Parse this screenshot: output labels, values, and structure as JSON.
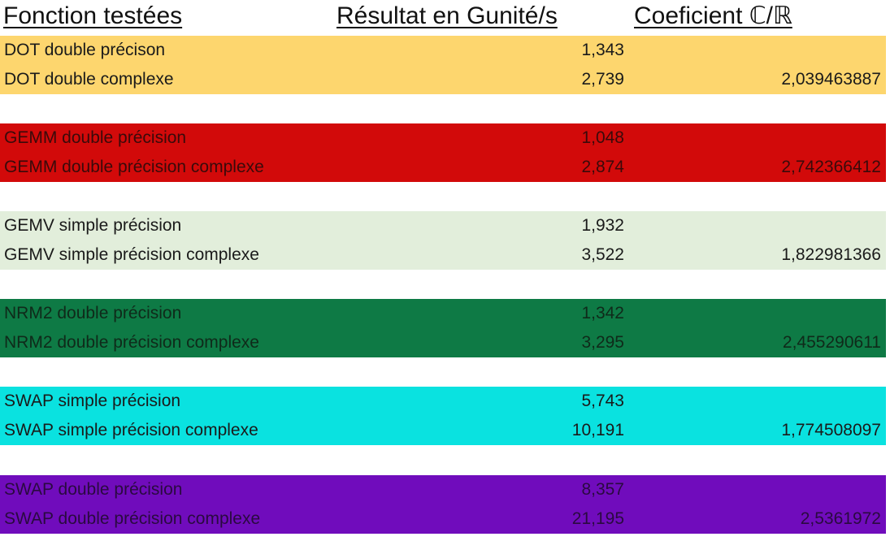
{
  "headers": {
    "function": "Fonction testées",
    "result": "Résultat en Gunité/s",
    "coefficient": "Coeficient  ℂ/ℝ"
  },
  "groups": [
    {
      "color": "#fdd66e",
      "text_color": "#1a1a1a",
      "rows": [
        {
          "name": "DOT double précison",
          "result": "1,343",
          "coef": ""
        },
        {
          "name": "DOT double complexe",
          "result": "2,739",
          "coef": "2,039463887"
        }
      ]
    },
    {
      "color": "#d20a0a",
      "text_color": "#3a0a0a",
      "rows": [
        {
          "name": "GEMM double précision",
          "result": "1,048",
          "coef": ""
        },
        {
          "name": "GEMM double précision complexe",
          "result": "2,874",
          "coef": "2,742366412"
        }
      ]
    },
    {
      "color": "#e2eedb",
      "text_color": "#1a1a1a",
      "rows": [
        {
          "name": "GEMV simple précision",
          "result": "1,932",
          "coef": ""
        },
        {
          "name": "GEMV simple précision complexe",
          "result": "3,522",
          "coef": "1,822981366"
        }
      ]
    },
    {
      "color": "#0e7a45",
      "text_color": "#0f2a1a",
      "rows": [
        {
          "name": "NRM2 double précision",
          "result": "1,342",
          "coef": ""
        },
        {
          "name": "NRM2 double précision complexe",
          "result": "3,295",
          "coef": "2,455290611"
        }
      ]
    },
    {
      "color": "#0ae2e0",
      "text_color": "#1a1a1a",
      "rows": [
        {
          "name": "SWAP simple précision",
          "result": "5,743",
          "coef": ""
        },
        {
          "name": "SWAP simple précision complexe",
          "result": "10,191",
          "coef": "1,774508097"
        }
      ]
    },
    {
      "color": "#700cbc",
      "text_color": "#2a0a40",
      "rows": [
        {
          "name": "SWAP double précision",
          "result": "8,357",
          "coef": ""
        },
        {
          "name": "SWAP double précision complexe",
          "result": "21,195",
          "coef": "2,5361972"
        }
      ]
    }
  ]
}
